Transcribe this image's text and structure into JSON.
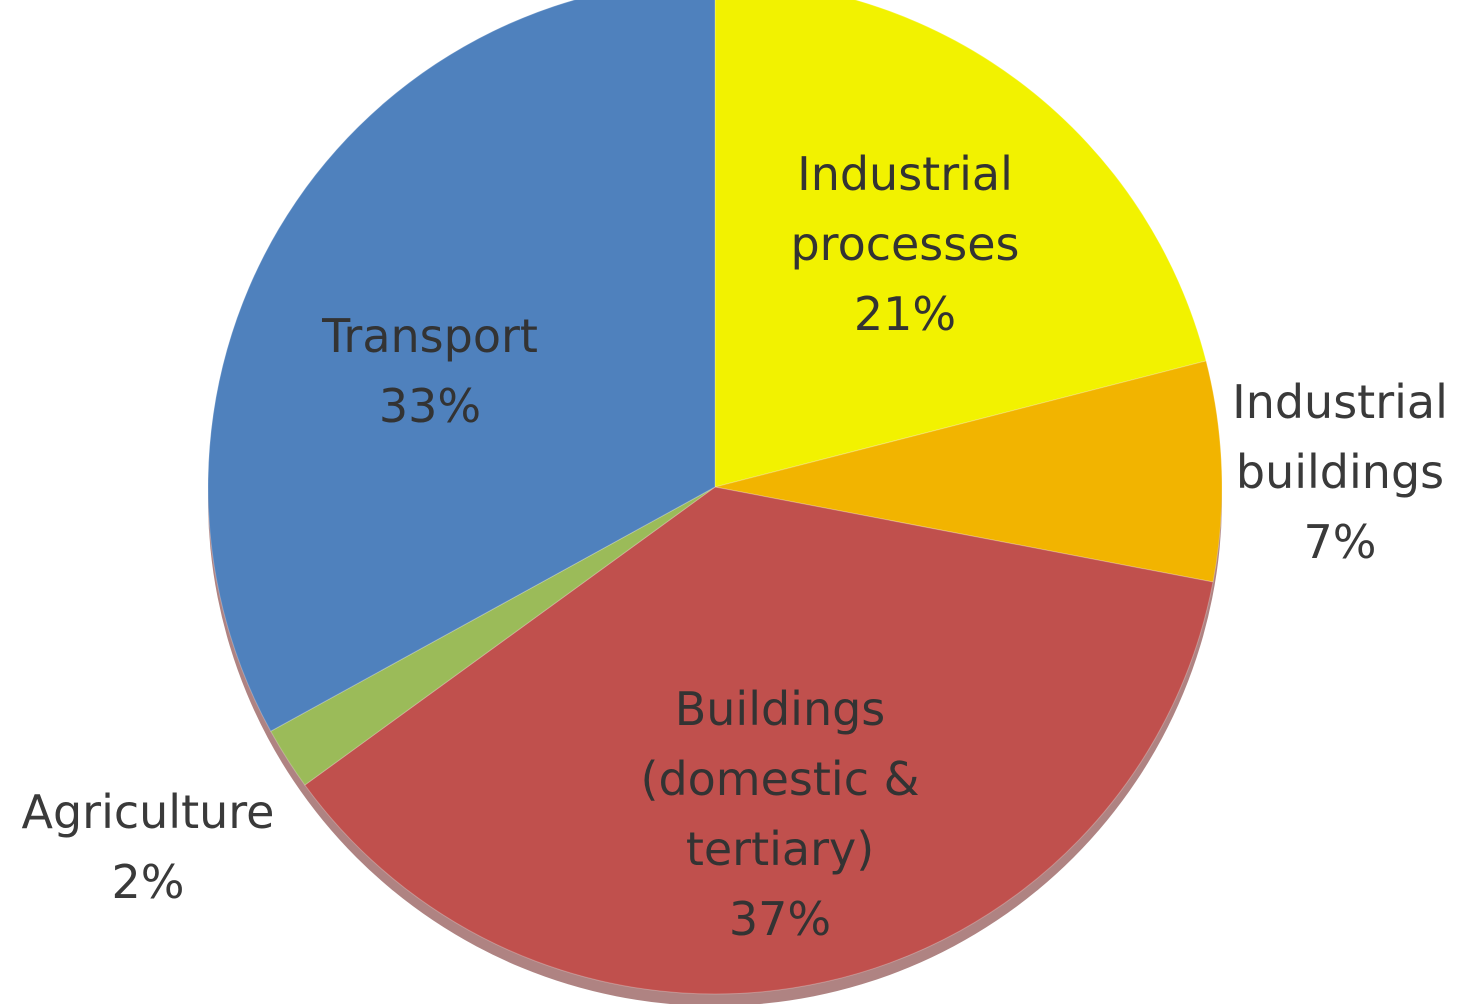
{
  "chart_data": {
    "type": "pie",
    "title": "",
    "slices": [
      {
        "name": "Industrial processes",
        "label_lines": [
          "Industrial",
          "processes",
          "21%"
        ],
        "value": 21,
        "color": "#f2f200"
      },
      {
        "name": "Industrial buildings",
        "label_lines": [
          "Industrial",
          "buildings",
          "7%"
        ],
        "value": 7,
        "color": "#f2b400"
      },
      {
        "name": "Buildings (domestic & tertiary)",
        "label_lines": [
          "Buildings",
          "(domestic &",
          "tertiary)",
          "37%"
        ],
        "value": 37,
        "color": "#c0504d"
      },
      {
        "name": "Agriculture",
        "label_lines": [
          "Agriculture",
          "2%"
        ],
        "value": 2,
        "color": "#9bbb59"
      },
      {
        "name": "Transport",
        "label_lines": [
          "Transport",
          "33%"
        ],
        "value": 33,
        "color": "#4f81bd"
      }
    ],
    "start": "top",
    "direction": "clockwise",
    "legend": "none",
    "data_labels": "category-and-percent"
  }
}
